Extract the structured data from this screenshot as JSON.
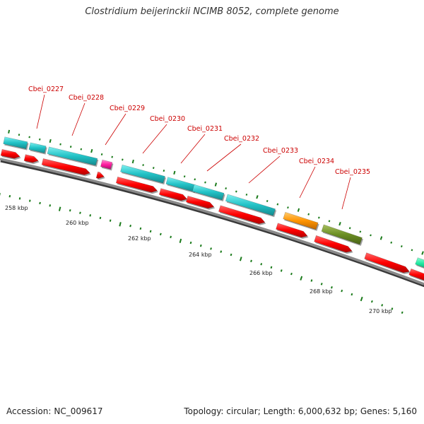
{
  "title": "Clostridium beijerinckii NCIMB 8052, complete genome",
  "footer": {
    "accession_label": "Accession:",
    "accession_value": "NC_009617",
    "topology_label": "Topology:",
    "topology_value": "circular",
    "length_label": "Length:",
    "length_value": "6,000,632 bp",
    "genes_label": "Genes:",
    "genes_value": "5,160"
  },
  "colors": {
    "backbone": "#8a8a8a",
    "cds": "#ff0000",
    "label": "#cc0000",
    "tick": "#1a7a1a",
    "cyan_feature": "#2ec4c4",
    "magenta_feature": "#ff2fa8",
    "orange_feature": "#ff9a1a",
    "olive_feature": "#6b8e23",
    "teal_feature": "#20e8a0"
  },
  "gene_labels": [
    "Cbei_0227",
    "Cbei_0228",
    "Cbei_0229",
    "Cbei_0230",
    "Cbei_0231",
    "Cbei_0232",
    "Cbei_0233",
    "Cbei_0234",
    "Cbei_0235"
  ],
  "scale_labels": [
    "258 kbp",
    "260 kbp",
    "262 kbp",
    "264 kbp",
    "266 kbp",
    "268 kbp",
    "270 kbp"
  ]
}
